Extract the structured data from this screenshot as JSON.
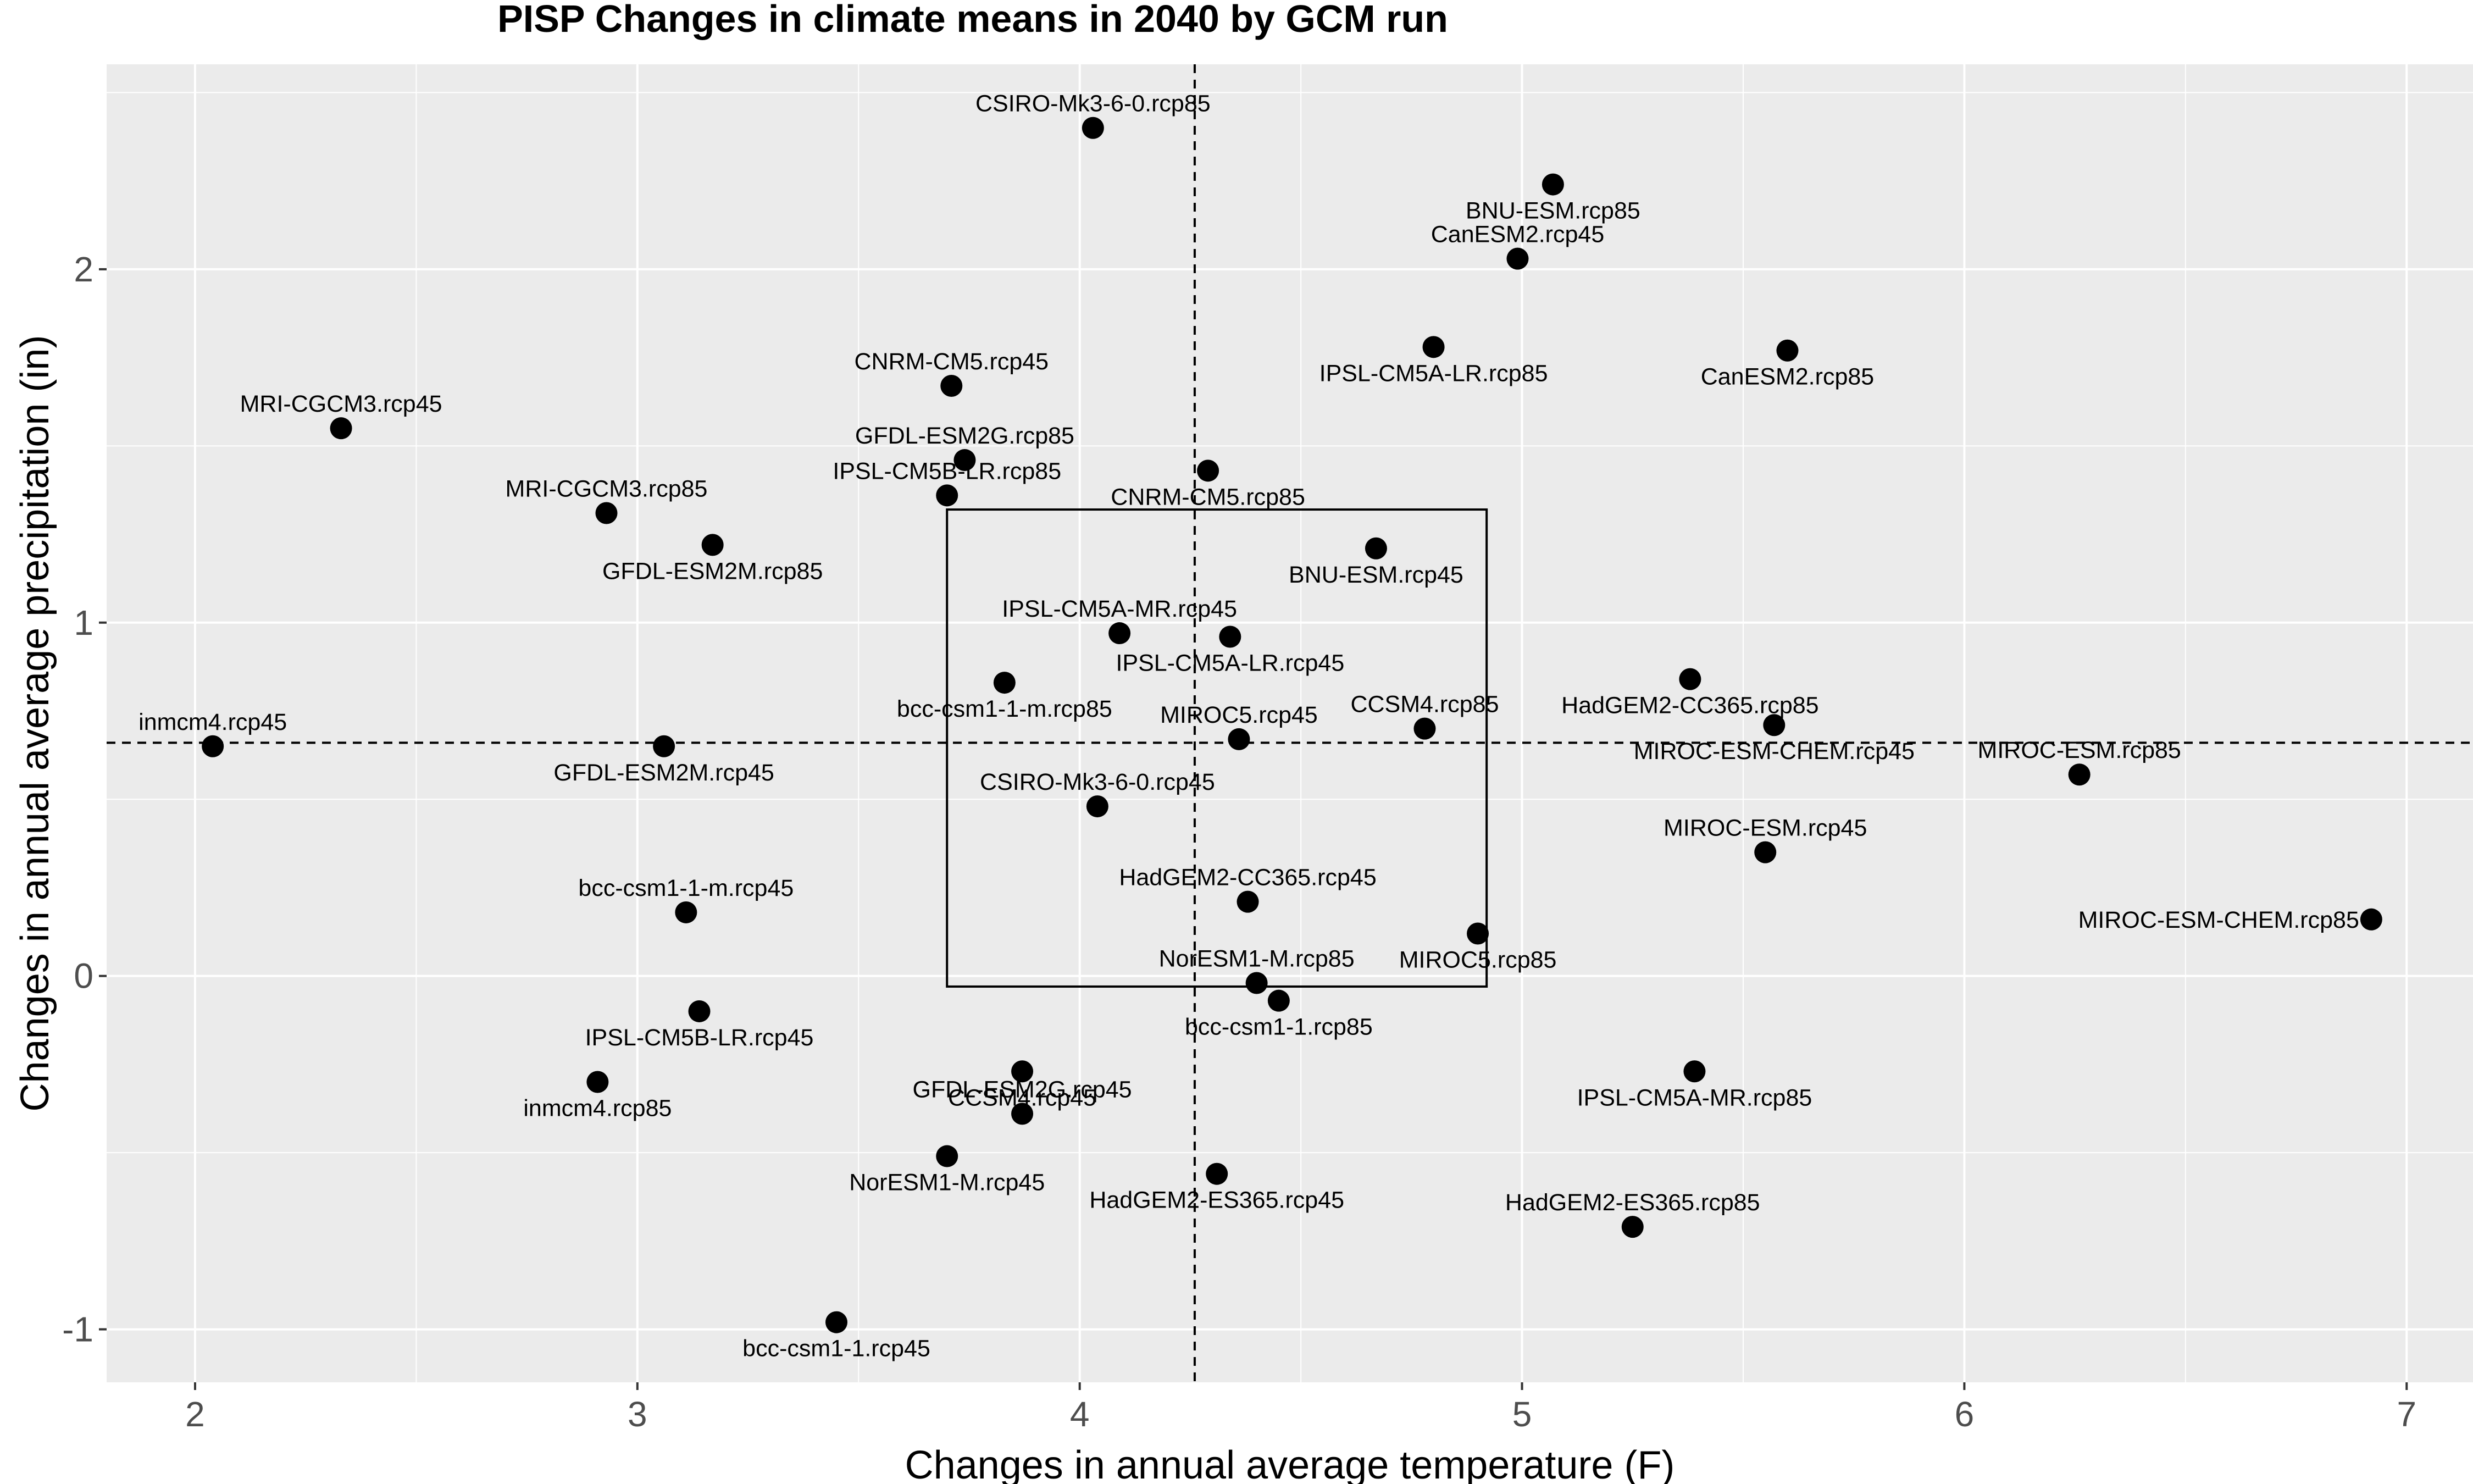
{
  "chart_data": {
    "type": "scatter",
    "title": "PISP Changes in climate means in 2040 by GCM run",
    "xlabel": "Changes in annual average temperature (F)",
    "ylabel": "Changes in annual average precipitation (in)",
    "xlim": [
      1.8,
      7.15
    ],
    "ylim": [
      -1.15,
      2.58
    ],
    "x_ticks": [
      2,
      3,
      4,
      5,
      6,
      7
    ],
    "x_tick_labels": [
      "2",
      "3",
      "4",
      "5",
      "6",
      "7"
    ],
    "y_ticks": [
      -1,
      0,
      1,
      2
    ],
    "y_tick_labels": [
      "-1",
      "0",
      "1",
      "2"
    ],
    "grid": true,
    "legend": "none",
    "reference_lines": {
      "x": 4.26,
      "y": 0.66
    },
    "highlight_box": {
      "x": [
        3.7,
        4.92
      ],
      "y": [
        -0.03,
        1.32
      ]
    },
    "points": [
      {
        "label": "CSIRO-Mk3-6-0.rcp85",
        "x": 4.03,
        "y": 2.4,
        "pos": "above"
      },
      {
        "label": "BNU-ESM.rcp85",
        "x": 5.07,
        "y": 2.24,
        "pos": "below"
      },
      {
        "label": "CanESM2.rcp45",
        "x": 4.99,
        "y": 2.03,
        "pos": "above"
      },
      {
        "label": "IPSL-CM5A-LR.rcp85",
        "x": 4.8,
        "y": 1.78,
        "pos": "below"
      },
      {
        "label": "CanESM2.rcp85",
        "x": 5.6,
        "y": 1.77,
        "pos": "below"
      },
      {
        "label": "CNRM-CM5.rcp45",
        "x": 3.71,
        "y": 1.67,
        "pos": "above"
      },
      {
        "label": "MRI-CGCM3.rcp45",
        "x": 2.33,
        "y": 1.55,
        "pos": "above"
      },
      {
        "label": "GFDL-ESM2G.rcp85",
        "x": 3.74,
        "y": 1.46,
        "pos": "above"
      },
      {
        "label": "CNRM-CM5.rcp85",
        "x": 4.29,
        "y": 1.43,
        "pos": "below"
      },
      {
        "label": "IPSL-CM5B-LR.rcp85",
        "x": 3.7,
        "y": 1.36,
        "pos": "above"
      },
      {
        "label": "MRI-CGCM3.rcp85",
        "x": 2.93,
        "y": 1.31,
        "pos": "above"
      },
      {
        "label": "GFDL-ESM2M.rcp85",
        "x": 3.17,
        "y": 1.22,
        "pos": "below"
      },
      {
        "label": "BNU-ESM.rcp45",
        "x": 4.67,
        "y": 1.21,
        "pos": "below"
      },
      {
        "label": "IPSL-CM5A-MR.rcp45",
        "x": 4.09,
        "y": 0.97,
        "pos": "above"
      },
      {
        "label": "IPSL-CM5A-LR.rcp45",
        "x": 4.34,
        "y": 0.96,
        "pos": "below"
      },
      {
        "label": "HadGEM2-CC365.rcp85",
        "x": 5.38,
        "y": 0.84,
        "pos": "below"
      },
      {
        "label": "bcc-csm1-1-m.rcp85",
        "x": 3.83,
        "y": 0.83,
        "pos": "below"
      },
      {
        "label": "MIROC-ESM-CHEM.rcp45",
        "x": 5.57,
        "y": 0.71,
        "pos": "below"
      },
      {
        "label": "CCSM4.rcp85",
        "x": 4.78,
        "y": 0.7,
        "pos": "above"
      },
      {
        "label": "MIROC5.rcp45",
        "x": 4.36,
        "y": 0.67,
        "pos": "above"
      },
      {
        "label": "GFDL-ESM2M.rcp45",
        "x": 3.06,
        "y": 0.65,
        "pos": "below"
      },
      {
        "label": "inmcm4.rcp45",
        "x": 2.04,
        "y": 0.65,
        "pos": "above"
      },
      {
        "label": "MIROC-ESM.rcp85",
        "x": 6.26,
        "y": 0.57,
        "pos": "above"
      },
      {
        "label": "CSIRO-Mk3-6-0.rcp45",
        "x": 4.04,
        "y": 0.48,
        "pos": "above"
      },
      {
        "label": "MIROC-ESM.rcp45",
        "x": 5.55,
        "y": 0.35,
        "pos": "above"
      },
      {
        "label": "HadGEM2-CC365.rcp45",
        "x": 4.38,
        "y": 0.21,
        "pos": "above"
      },
      {
        "label": "bcc-csm1-1-m.rcp45",
        "x": 3.11,
        "y": 0.18,
        "pos": "above"
      },
      {
        "label": "MIROC-ESM-CHEM.rcp85",
        "x": 6.92,
        "y": 0.16,
        "pos": "left"
      },
      {
        "label": "MIROC5.rcp85",
        "x": 4.9,
        "y": 0.12,
        "pos": "below"
      },
      {
        "label": "NorESM1-M.rcp85",
        "x": 4.4,
        "y": -0.02,
        "pos": "above"
      },
      {
        "label": "bcc-csm1-1.rcp85",
        "x": 4.45,
        "y": -0.07,
        "pos": "below"
      },
      {
        "label": "IPSL-CM5B-LR.rcp45",
        "x": 3.14,
        "y": -0.1,
        "pos": "below"
      },
      {
        "label": "CCSM4.rcp45",
        "x": 3.87,
        "y": -0.27,
        "pos": "below"
      },
      {
        "label": "IPSL-CM5A-MR.rcp85",
        "x": 5.39,
        "y": -0.27,
        "pos": "below"
      },
      {
        "label": "inmcm4.rcp85",
        "x": 2.91,
        "y": -0.3,
        "pos": "below"
      },
      {
        "label": "GFDL-ESM2G.rcp45",
        "x": 3.87,
        "y": -0.39,
        "pos": "above"
      },
      {
        "label": "NorESM1-M.rcp45",
        "x": 3.7,
        "y": -0.51,
        "pos": "below"
      },
      {
        "label": "HadGEM2-ES365.rcp45",
        "x": 4.31,
        "y": -0.56,
        "pos": "below"
      },
      {
        "label": "HadGEM2-ES365.rcp85",
        "x": 5.25,
        "y": -0.71,
        "pos": "above"
      },
      {
        "label": "bcc-csm1-1.rcp45",
        "x": 3.45,
        "y": -0.98,
        "pos": "below"
      }
    ]
  }
}
